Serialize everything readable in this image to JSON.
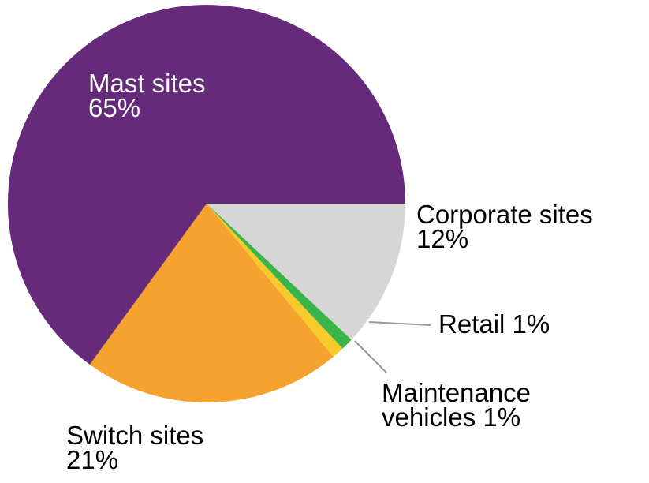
{
  "chart_data": {
    "type": "pie",
    "categories": [
      "Corporate sites",
      "Retail",
      "Maintenance vehicles",
      "Switch sites",
      "Mast sites"
    ],
    "values": [
      12,
      1,
      1,
      21,
      65
    ],
    "value_labels": [
      "12%",
      "1%",
      "1%",
      "21%",
      "65%"
    ],
    "colors": [
      "#d6d6d6",
      "#3ab54a",
      "#f9cb2a",
      "#f5a22f",
      "#652a7a"
    ]
  }
}
